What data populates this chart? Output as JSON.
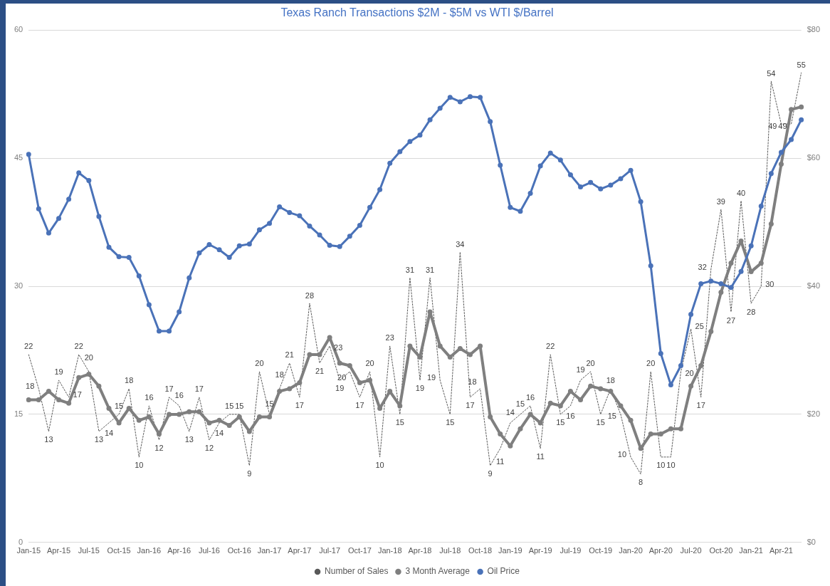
{
  "chart_data": {
    "type": "line",
    "title": "Texas Ranch Transactions $2M - $5M vs WTI $/Barrel",
    "categories": [
      "Jan-15",
      null,
      null,
      "Apr-15",
      null,
      null,
      "Jul-15",
      null,
      null,
      "Oct-15",
      null,
      null,
      "Jan-16",
      null,
      null,
      "Apr-16",
      null,
      null,
      "Jul-16",
      null,
      null,
      "Oct-16",
      null,
      null,
      "Jan-17",
      null,
      null,
      "Apr-17",
      null,
      null,
      "Jul-17",
      null,
      null,
      "Oct-17",
      null,
      null,
      "Jan-18",
      null,
      null,
      "Apr-18",
      null,
      null,
      "Jul-18",
      null,
      null,
      "Oct-18",
      null,
      null,
      "Jan-19",
      null,
      null,
      "Apr-19",
      null,
      null,
      "Jul-19",
      null,
      null,
      "Oct-19",
      null,
      null,
      "Jan-20",
      null,
      null,
      "Apr-20",
      null,
      null,
      "Jul-20",
      null,
      null,
      "Oct-20",
      null,
      null,
      "Jan-21",
      null,
      null,
      "Apr-21",
      null,
      null
    ],
    "series": [
      {
        "name": "Number of Sales",
        "color": "#595959",
        "line_style": "dotted",
        "marker": "none",
        "values": [
          22,
          18,
          13,
          19,
          17,
          22,
          20,
          13,
          14,
          15,
          18,
          10,
          16,
          12,
          17,
          16,
          13,
          17,
          12,
          14,
          15,
          15,
          9,
          20,
          15,
          18,
          21,
          17,
          28,
          21,
          23,
          19,
          20,
          17,
          20,
          10,
          23,
          15,
          31,
          19,
          31,
          19,
          15,
          34,
          17,
          18,
          9,
          11,
          14,
          15,
          16,
          11,
          22,
          15,
          16,
          19,
          20,
          15,
          18,
          15,
          10,
          8,
          20,
          10,
          10,
          20,
          25,
          17,
          32,
          39,
          27,
          40,
          28,
          30,
          54,
          49,
          49,
          55
        ],
        "value_labels": [
          "22",
          "18",
          "13",
          "19",
          "17",
          "22",
          "20",
          "13",
          "14",
          "15",
          "18",
          "10",
          "16",
          "12",
          "17",
          "16",
          "13",
          "17",
          "12",
          "14",
          "15",
          "15",
          "9",
          "20",
          "15",
          "18",
          "21",
          "17",
          "28",
          "21",
          "23",
          "19",
          "20",
          "17",
          "20",
          "10",
          "23",
          "15",
          "31",
          "19",
          "31",
          "19",
          "15",
          "34",
          "17",
          "18",
          "9",
          "11",
          "14",
          "15",
          "16",
          "11",
          "22",
          "15",
          "16",
          "19",
          "20",
          "15",
          "18",
          "15",
          "10",
          "8",
          "20",
          "10",
          "10",
          "20",
          "25",
          "17",
          "32",
          "39",
          "27",
          "40",
          "28",
          "30",
          "54",
          "49",
          "49",
          "55"
        ]
      },
      {
        "name": "3 Month Average",
        "color": "#7f7f7f",
        "line_style": "solid",
        "marker": "circle",
        "values": [
          16.7,
          16.7,
          17.7,
          16.7,
          16.3,
          19.3,
          19.7,
          18.3,
          15.7,
          14.0,
          15.7,
          14.3,
          14.7,
          12.7,
          15.0,
          15.0,
          15.3,
          15.3,
          14.0,
          14.3,
          13.7,
          14.7,
          13.0,
          14.7,
          14.7,
          17.7,
          18.0,
          18.7,
          22.0,
          22.0,
          24.0,
          21.0,
          20.7,
          18.7,
          19.0,
          15.7,
          17.7,
          16.0,
          23.0,
          21.7,
          27.0,
          23.0,
          21.7,
          22.7,
          22.0,
          23.0,
          14.7,
          12.7,
          11.3,
          13.3,
          15.0,
          14.0,
          16.3,
          16.0,
          17.7,
          16.7,
          18.3,
          18.0,
          17.7,
          16.0,
          14.3,
          11.0,
          12.7,
          12.7,
          13.3,
          13.3,
          18.3,
          20.7,
          24.7,
          29.3,
          32.7,
          35.3,
          31.7,
          32.7,
          37.3,
          44.3,
          50.7,
          51.0
        ]
      },
      {
        "name": "Oil Price",
        "color": "#4a72b8",
        "axis": "y2",
        "line_style": "solid",
        "marker": "circle",
        "values": [
          60.6,
          52.1,
          48.3,
          50.6,
          53.6,
          57.7,
          56.5,
          50.9,
          46.1,
          44.6,
          44.5,
          41.6,
          37.1,
          33.0,
          33.0,
          36.0,
          41.3,
          45.2,
          46.5,
          45.7,
          44.5,
          46.3,
          46.6,
          48.8,
          49.8,
          52.4,
          51.5,
          51.0,
          49.4,
          48.0,
          46.4,
          46.2,
          47.8,
          49.5,
          52.3,
          55.1,
          59.2,
          61.0,
          62.6,
          63.6,
          66.0,
          67.8,
          69.5,
          68.8,
          69.6,
          69.5,
          65.7,
          58.9,
          52.3,
          51.7,
          54.5,
          58.8,
          60.8,
          59.7,
          57.4,
          55.5,
          56.2,
          55.2,
          55.8,
          56.8,
          58.1,
          53.2,
          43.2,
          29.5,
          24.6,
          27.6,
          35.6,
          40.4,
          40.8,
          40.4,
          39.8,
          42.3,
          46.3,
          52.5,
          57.6,
          60.9,
          62.9,
          66.0
        ]
      }
    ],
    "ylim": [
      0,
      60
    ],
    "yticks": [
      0,
      15,
      30,
      45,
      60
    ],
    "y2lim": [
      0,
      80
    ],
    "y2ticks": [
      {
        "value": 0,
        "label": "$0"
      },
      {
        "value": 20,
        "label": "$20"
      },
      {
        "value": 40,
        "label": "$40"
      },
      {
        "value": 60,
        "label": "$60"
      },
      {
        "value": 80,
        "label": "$80"
      }
    ],
    "grid": "y",
    "legend": "bottom"
  }
}
